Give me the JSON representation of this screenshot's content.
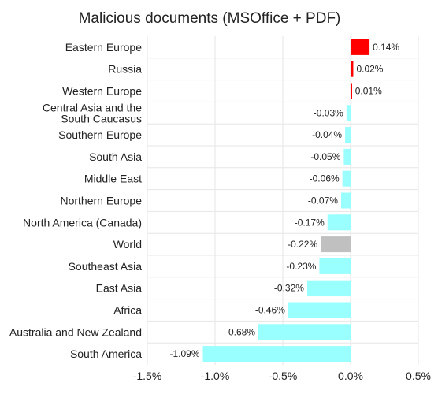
{
  "chart_data": {
    "type": "bar",
    "orientation": "horizontal",
    "title": "Malicious documents (MSOffice + PDF)",
    "xlabel": "",
    "ylabel": "",
    "categories": [
      "Eastern Europe",
      "Russia",
      "Western Europe",
      "Central Asia and the South Caucasus",
      "Southern Europe",
      "South Asia",
      "Middle East",
      "Northern Europe",
      "North America (Canada)",
      "World",
      "Southeast Asia",
      "East Asia",
      "Africa",
      "Australia and New Zealand",
      "South America"
    ],
    "category_lines": [
      [
        "Eastern Europe"
      ],
      [
        "Russia"
      ],
      [
        "Western Europe"
      ],
      [
        "Central Asia and the",
        "South Caucasus"
      ],
      [
        "Southern Europe"
      ],
      [
        "South Asia"
      ],
      [
        "Middle East"
      ],
      [
        "Northern Europe"
      ],
      [
        "North America (Canada)"
      ],
      [
        "World"
      ],
      [
        "Southeast Asia"
      ],
      [
        "East Asia"
      ],
      [
        "Africa"
      ],
      [
        "Australia and New Zealand"
      ],
      [
        "South America"
      ]
    ],
    "values": [
      0.14,
      0.02,
      0.01,
      -0.03,
      -0.04,
      -0.05,
      -0.06,
      -0.07,
      -0.17,
      -0.22,
      -0.23,
      -0.32,
      -0.46,
      -0.68,
      -1.09
    ],
    "data_labels": [
      "0.14%",
      "0.02%",
      "0.01%",
      "-0.03%",
      "-0.04%",
      "-0.05%",
      "-0.06%",
      "-0.07%",
      "-0.17%",
      "-0.22%",
      "-0.23%",
      "-0.32%",
      "-0.46%",
      "-0.68%",
      "-1.09%"
    ],
    "xlim": [
      -1.5,
      0.5
    ],
    "xticks": [
      -1.5,
      -1.0,
      -0.5,
      0.0,
      0.5
    ],
    "xtick_labels": [
      "-1.5%",
      "-1.0%",
      "-0.5%",
      "0.0%",
      "0.5%"
    ],
    "grid": true,
    "legend": "none",
    "colors": {
      "positive": "#ff0000",
      "negative": "#99ffff",
      "world": "#c0c0c0",
      "grid": "#e6e6e6",
      "text": "#222222"
    }
  }
}
